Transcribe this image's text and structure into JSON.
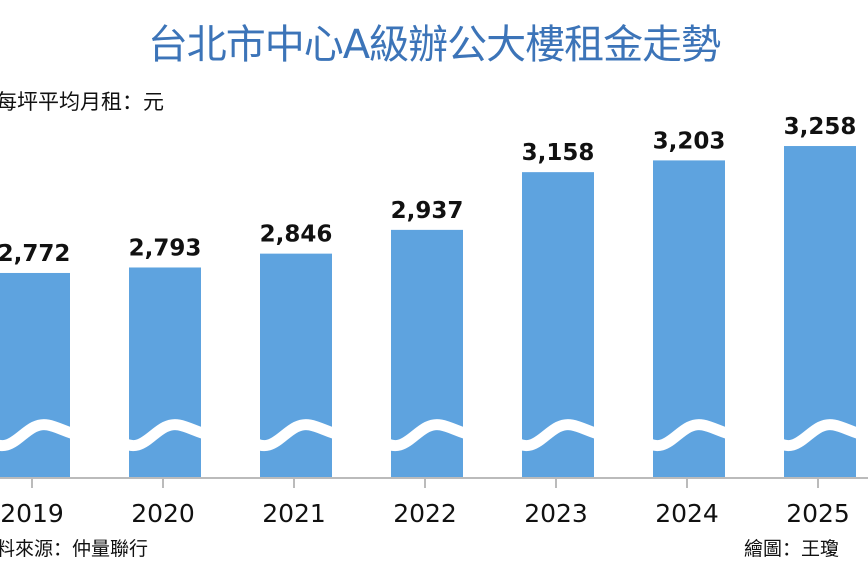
{
  "chart_data": {
    "type": "bar",
    "title": "台北市中心A級辦公大樓租金走勢",
    "ylabel": "每坪平均月租：元",
    "xlabel": "",
    "categories": [
      "2019",
      "2020",
      "2021",
      "2022",
      "2023",
      "2024",
      "2025"
    ],
    "values": [
      2772,
      2793,
      2846,
      2937,
      3158,
      3203,
      3258
    ],
    "value_labels": [
      "2,772",
      "2,793",
      "2,846",
      "2,937",
      "3,158",
      "3,203",
      "3,258"
    ],
    "ylim": [
      1987,
      3350
    ],
    "axis_break": true,
    "grid": false,
    "bar_color": "#5ea3df",
    "title_color": "#3c74b8",
    "source": "料來源：仲量聯行",
    "credit": "繪圖：王瓊"
  }
}
